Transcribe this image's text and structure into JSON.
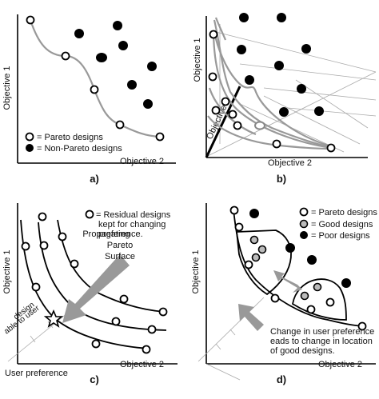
{
  "panels": {
    "a": {
      "label": "a)",
      "y_axis": "Objective 1",
      "x_axis": "Objective 2",
      "legend": [
        "= Pareto designs",
        "= Non-Pareto designs"
      ]
    },
    "b": {
      "label": "b)",
      "y_axis": "Objective 1",
      "x_axis": "Objective 2",
      "z_axis": "Objective 3"
    },
    "c": {
      "label": "c)",
      "y_axis": "Objective 1",
      "x_axis": "Objective 2",
      "legend": [
        "= Residual designs",
        "kept for changing",
        "preference."
      ],
      "arrow_text": [
        "Propagating",
        "Pareto",
        "Surface"
      ],
      "star_text": [
        "design",
        "able to user"
      ],
      "pref_axis": "User preference"
    },
    "d": {
      "label": "d)",
      "y_axis": "Objective 1",
      "x_axis": "Objective 2",
      "legend": [
        "= Pareto designs",
        "= Good designs",
        "= Poor designs"
      ],
      "note": [
        "Change in user preference",
        "eads to change in location",
        "of good designs."
      ]
    }
  }
}
